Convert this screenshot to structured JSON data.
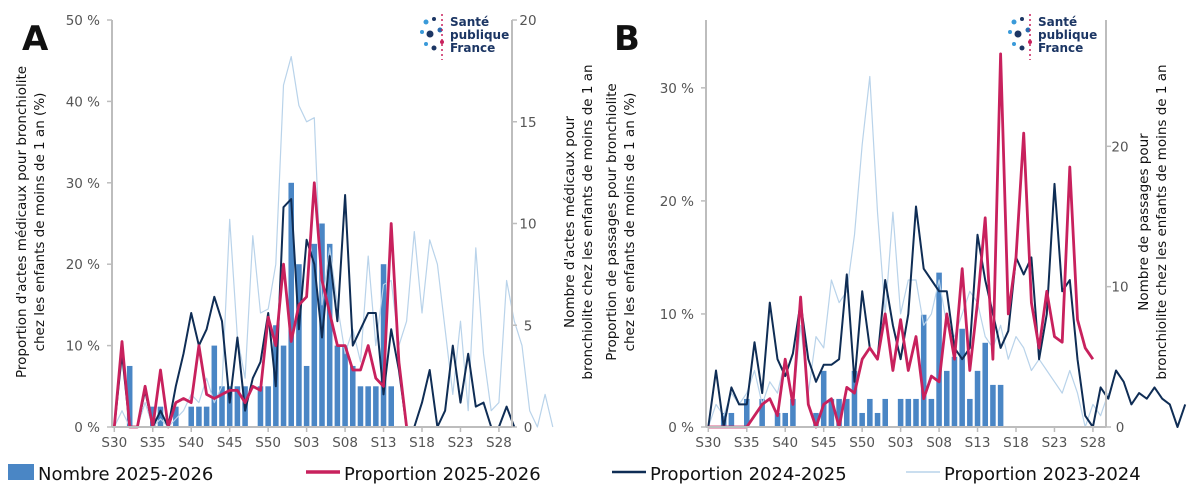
{
  "logo": {
    "lines": [
      "Santé",
      "publique",
      "France"
    ]
  },
  "legend": [
    {
      "label": "Nombre 2025-2026",
      "kind": "bar",
      "color": "#4a86c5"
    },
    {
      "label": "Proportion 2025-2026",
      "kind": "line",
      "color": "#c8215d"
    },
    {
      "label": "Proportion 2024-2025",
      "kind": "line",
      "color": "#0f2d55"
    },
    {
      "label": "Proportion 2023-2024",
      "kind": "line",
      "color": "#b9d3ea"
    }
  ],
  "chart_data": [
    {
      "panel": "A",
      "type": "bar+line",
      "x_labels": [
        "S30",
        "S35",
        "S40",
        "S45",
        "S50",
        "S03",
        "S08",
        "S13",
        "S18",
        "S23",
        "S28"
      ],
      "ylabel_left": "Proportion d'actes médicaux pour bronchiolite chez les enfants de moins de 1 an (%)",
      "ylabel_right": "Nombre d'actes médicaux pour bronchiolite chez les enfants de moins de 1 an",
      "left_ticks": [
        "0 %",
        "10 %",
        "20 %",
        "30 %",
        "40 %",
        "50 %"
      ],
      "right_ticks": [
        "0",
        "5",
        "10",
        "15",
        "20"
      ],
      "ylim_left": [
        0,
        50
      ],
      "ylim_right": [
        0,
        20
      ],
      "bars_2025_2026": [
        0,
        3,
        0,
        0,
        1,
        1,
        0,
        1,
        0,
        1,
        1,
        1,
        4,
        2,
        2,
        2,
        2,
        0,
        2,
        2,
        5,
        4,
        12,
        8,
        3,
        9,
        10,
        9,
        4,
        4,
        3,
        2,
        2,
        2,
        8,
        2
      ],
      "series": [
        {
          "name": "Proportion 2025-2026",
          "color": "#c8215d",
          "values": [
            0,
            10.5,
            0,
            0,
            5,
            0,
            7,
            0,
            3,
            3.5,
            3,
            10,
            4,
            3.5,
            4,
            4.5,
            4.5,
            3,
            5,
            4.5,
            13.5,
            10,
            20,
            10.5,
            15,
            16,
            30,
            18,
            14,
            10,
            10,
            7,
            7,
            10,
            6,
            5,
            25,
            8,
            0
          ]
        },
        {
          "name": "Proportion 2024-2025",
          "color": "#0f2d55",
          "values": [
            0,
            9,
            0,
            0,
            4.5,
            0,
            2,
            0,
            5,
            9,
            14,
            10,
            12,
            16,
            13,
            3,
            11,
            2,
            6,
            8,
            14,
            5,
            27,
            28,
            12,
            23,
            20,
            11,
            21,
            13,
            28.5,
            10,
            12,
            14,
            14,
            4,
            12,
            7,
            0,
            0,
            3,
            7,
            0,
            2,
            10,
            3,
            9,
            2.5,
            3,
            0,
            0,
            2.5,
            0
          ]
        },
        {
          "name": "Proportion 2023-2024",
          "color": "#b9d3ea",
          "values": [
            0,
            2,
            0,
            0,
            3,
            0,
            1,
            0,
            1,
            2,
            4,
            3,
            6,
            3,
            5,
            25.5,
            11,
            6,
            23.5,
            14,
            14.5,
            20,
            42,
            45.5,
            39.5,
            37.5,
            38,
            15,
            22,
            15,
            9,
            12,
            8,
            21,
            10,
            17.5,
            18,
            10,
            13,
            24,
            14,
            23,
            20,
            12,
            4,
            13,
            2,
            22,
            9,
            2,
            3,
            18,
            13,
            10,
            2,
            0,
            4,
            0
          ]
        }
      ]
    },
    {
      "panel": "B",
      "type": "bar+line",
      "x_labels": [
        "S30",
        "S35",
        "S40",
        "S45",
        "S50",
        "S03",
        "S08",
        "S13",
        "S18",
        "S23",
        "S28"
      ],
      "ylabel_left": "Proportion de passages pour bronchiolite chez les enfants de moins de 1 an (%)",
      "ylabel_right": "Nombre de passages pour bronchiolite chez les enfants de moins de 1 an",
      "left_ticks": [
        "0 %",
        "10 %",
        "20 %",
        "30 %"
      ],
      "right_ticks": [
        "0",
        "10",
        "20"
      ],
      "ylim_left": [
        0,
        36
      ],
      "ylim_right": [
        0,
        29
      ],
      "bars_2025_2026": [
        0,
        1,
        1,
        0,
        2,
        0,
        2,
        0,
        1,
        1,
        2,
        0,
        0,
        1,
        4,
        2,
        2,
        2,
        4,
        1,
        2,
        1,
        2,
        0,
        2,
        2,
        2,
        8,
        2,
        11,
        4,
        5,
        7,
        2,
        4,
        6,
        3,
        3
      ],
      "series": [
        {
          "name": "Proportion 2025-2026",
          "color": "#c8215d",
          "values": [
            0,
            0,
            0,
            0,
            0,
            0,
            1,
            2,
            2.5,
            1,
            6,
            2,
            11.5,
            2,
            0,
            2,
            2.5,
            0,
            3.5,
            3,
            6,
            7,
            6,
            10,
            5,
            9.5,
            5,
            8,
            2.5,
            4.5,
            4,
            10,
            6,
            14,
            5,
            11,
            18.5,
            6,
            33,
            10,
            15,
            26,
            11,
            7,
            12,
            8,
            7.5,
            23,
            9.5,
            7,
            6
          ]
        },
        {
          "name": "Proportion 2024-2025",
          "color": "#0f2d55",
          "values": [
            0,
            5,
            0,
            3.5,
            2,
            2,
            7.5,
            3,
            11,
            6,
            4.5,
            6.5,
            11,
            6,
            4,
            5.5,
            5.5,
            6,
            13.5,
            4,
            12,
            7,
            6,
            13,
            9,
            6,
            10,
            19.5,
            14,
            13,
            12,
            12,
            7,
            6,
            7,
            17,
            13,
            10,
            7,
            8.5,
            15,
            13.5,
            15,
            6,
            10,
            21.5,
            12,
            13,
            6,
            1,
            0,
            3.5,
            2.5,
            5,
            4,
            2,
            3,
            2.5,
            3.5,
            2.5,
            2,
            0,
            2
          ]
        },
        {
          "name": "Proportion 2023-2024",
          "color": "#b9d3ea",
          "values": [
            0,
            2,
            1,
            3,
            2,
            3,
            5,
            2,
            4,
            3,
            6,
            2,
            9,
            3,
            8,
            7,
            13,
            11,
            12,
            17,
            25,
            31,
            19,
            10,
            19,
            10,
            13,
            13,
            9,
            10,
            13,
            9,
            8,
            10,
            12,
            11,
            8,
            7,
            9,
            6,
            8,
            7,
            5,
            6,
            5,
            4,
            3,
            5,
            3,
            0,
            2,
            1,
            3
          ]
        }
      ]
    }
  ]
}
